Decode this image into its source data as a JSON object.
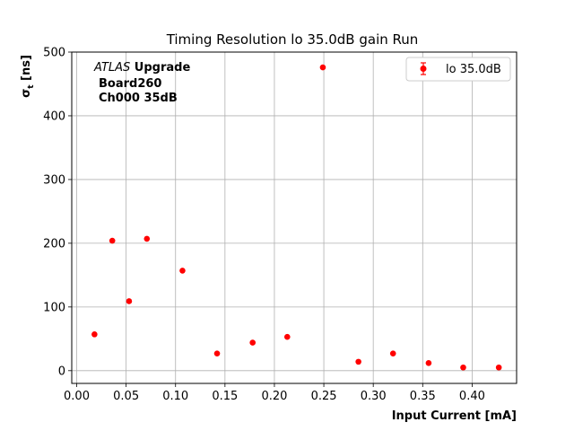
{
  "chart_data": {
    "type": "scatter",
    "title": "Timing Resolution lo 35.0dB gain Run",
    "xlabel": "Input Current [mA]",
    "ylabel_main": "σ",
    "ylabel_sub": "t",
    "ylabel_rest": " [ns]",
    "xlim": [
      -0.005,
      0.445
    ],
    "ylim": [
      -20,
      500
    ],
    "xticks": [
      0.0,
      0.05,
      0.1,
      0.15,
      0.2,
      0.25,
      0.3,
      0.35,
      0.4
    ],
    "xtick_labels": [
      "0.00",
      "0.05",
      "0.10",
      "0.15",
      "0.20",
      "0.25",
      "0.30",
      "0.35",
      "0.40"
    ],
    "yticks": [
      0,
      100,
      200,
      300,
      400,
      500
    ],
    "ytick_labels": [
      "0",
      "100",
      "200",
      "300",
      "400",
      "500"
    ],
    "grid": true,
    "legend_position": "top-right",
    "series": [
      {
        "name": "lo 35.0dB",
        "color": "#ff0000",
        "marker": "circle",
        "x": [
          0.018,
          0.036,
          0.053,
          0.071,
          0.107,
          0.142,
          0.178,
          0.213,
          0.249,
          0.285,
          0.32,
          0.356,
          0.391,
          0.427
        ],
        "y": [
          57,
          204,
          109,
          207,
          157,
          27,
          44,
          53,
          476,
          14,
          27,
          12,
          5,
          5
        ]
      }
    ],
    "annotation": {
      "atlas": "ATLAS",
      "upgrade": " Upgrade",
      "board": "Board260",
      "channel": "Ch000 35dB"
    }
  }
}
